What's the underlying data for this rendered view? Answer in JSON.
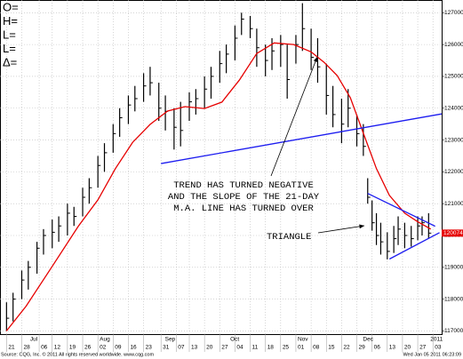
{
  "chart_data": {
    "type": "ohlc",
    "legend_labels": [
      "O=",
      "H=",
      "L=",
      "L=",
      "Δ="
    ],
    "bar_color": "#000000",
    "x": [
      0,
      3,
      7,
      10,
      14,
      17,
      21,
      24,
      28,
      31,
      35,
      38,
      42,
      45,
      49,
      52,
      56,
      59,
      63,
      66,
      70,
      73,
      77,
      80,
      84,
      87,
      91,
      94,
      98,
      101,
      105,
      108,
      112,
      115,
      119,
      122,
      126,
      129,
      133,
      136,
      140,
      143,
      147,
      150,
      154,
      157,
      161,
      164,
      166,
      168,
      170,
      172,
      175,
      178,
      180,
      183,
      186,
      189,
      191,
      194
    ],
    "high": [
      117900,
      118200,
      118900,
      119200,
      119800,
      120200,
      120500,
      120600,
      121000,
      120900,
      121500,
      121800,
      122500,
      122900,
      123500,
      124000,
      124400,
      124700,
      125100,
      125300,
      124800,
      124400,
      124000,
      124200,
      124500,
      124600,
      125000,
      125300,
      125800,
      126000,
      126600,
      127000,
      126900,
      126500,
      126000,
      126200,
      126300,
      126000,
      126300,
      127300,
      126500,
      126200,
      125400,
      124700,
      124300,
      124600,
      123800,
      123500,
      121800,
      121100,
      120700,
      120400,
      120100,
      120300,
      120600,
      120400,
      120300,
      120600,
      120600,
      120700
    ],
    "low": [
      117000,
      117300,
      118000,
      118300,
      118800,
      119400,
      119600,
      119800,
      120000,
      120300,
      120600,
      121000,
      121500,
      122000,
      122600,
      123100,
      123500,
      123900,
      124200,
      124400,
      123600,
      123300,
      122700,
      122800,
      123600,
      123800,
      124000,
      124300,
      124800,
      125100,
      125500,
      126300,
      126200,
      125300,
      125000,
      125200,
      125300,
      124300,
      125400,
      125800,
      125200,
      124800,
      123800,
      123400,
      122900,
      123400,
      122800,
      122500,
      121000,
      120150,
      119700,
      119400,
      119250,
      119450,
      119700,
      119600,
      119650,
      119850,
      120000,
      119900
    ],
    "close": [
      117400,
      118000,
      118600,
      119000,
      119600,
      120000,
      120100,
      120300,
      120700,
      120600,
      121200,
      121500,
      122200,
      122600,
      123200,
      123700,
      124100,
      124300,
      124700,
      124800,
      124000,
      123900,
      123400,
      123300,
      124200,
      124300,
      124600,
      125000,
      125400,
      125700,
      126200,
      126800,
      126500,
      125900,
      125500,
      125800,
      126000,
      124900,
      126000,
      126500,
      125600,
      125300,
      124400,
      123800,
      123500,
      124000,
      123200,
      122800,
      121200,
      120400,
      120000,
      119800,
      119500,
      119900,
      120200,
      120000,
      119900,
      120300,
      120400,
      120074
    ],
    "ma": {
      "color": "#e60000",
      "x": [
        0,
        9,
        21,
        33,
        42,
        50,
        58,
        66,
        74,
        82,
        91,
        99,
        107,
        115,
        123,
        132,
        140,
        146,
        152,
        158,
        164,
        170,
        176,
        183,
        189,
        195
      ],
      "values": [
        117000,
        117780,
        119030,
        120290,
        121120,
        122100,
        122930,
        123490,
        123910,
        124050,
        123990,
        124190,
        124880,
        125720,
        126050,
        126000,
        125770,
        125440,
        125020,
        124330,
        123210,
        122100,
        121260,
        120700,
        120430,
        120200
      ]
    },
    "trendlines": [
      {
        "color": "#1c1cf0",
        "x": [
          71,
          200
        ],
        "y": [
          122260,
          123820
        ]
      },
      {
        "color": "#1c1cf0",
        "x": [
          166,
          197
        ],
        "y": [
          121320,
          120290
        ]
      },
      {
        "color": "#1c1cf0",
        "x": [
          176,
          199
        ],
        "y": [
          119260,
          120090
        ]
      }
    ],
    "last_price": 120074,
    "last_price_color": "#e60000",
    "xlim": [
      -3,
      200
    ],
    "ylim": [
      116900,
      127400
    ],
    "yticks": [
      117000,
      118000,
      119000,
      120000,
      121000,
      122000,
      123000,
      124000,
      125000,
      126000,
      127000
    ],
    "xticks": [
      {
        "value": 0,
        "label": "21"
      },
      {
        "value": 7,
        "label": "28"
      },
      {
        "value": 15,
        "label": "06"
      },
      {
        "value": 21,
        "label": "12"
      },
      {
        "value": 28,
        "label": "19"
      },
      {
        "value": 35,
        "label": "26"
      },
      {
        "value": 42,
        "label": "02"
      },
      {
        "value": 49,
        "label": "09"
      },
      {
        "value": 56,
        "label": "16"
      },
      {
        "value": 63,
        "label": "23"
      },
      {
        "value": 71,
        "label": "31"
      },
      {
        "value": 78,
        "label": "07"
      },
      {
        "value": 84,
        "label": "13"
      },
      {
        "value": 91,
        "label": "20"
      },
      {
        "value": 98,
        "label": "27"
      },
      {
        "value": 105,
        "label": "04"
      },
      {
        "value": 112,
        "label": "11"
      },
      {
        "value": 119,
        "label": "18"
      },
      {
        "value": 126,
        "label": "25"
      },
      {
        "value": 133,
        "label": "01"
      },
      {
        "value": 140,
        "label": "08"
      },
      {
        "value": 147,
        "label": "15"
      },
      {
        "value": 154,
        "label": "22"
      },
      {
        "value": 161,
        "label": "29"
      },
      {
        "value": 168,
        "label": "06"
      },
      {
        "value": 175,
        "label": "13"
      },
      {
        "value": 182,
        "label": "20"
      },
      {
        "value": 189,
        "label": "27"
      },
      {
        "value": 196,
        "label": "03"
      }
    ],
    "month_ticks": [
      {
        "value": 10,
        "label": "Jul"
      },
      {
        "value": 42,
        "label": "Aug"
      },
      {
        "value": 72,
        "label": "Sep"
      },
      {
        "value": 102,
        "label": "Oct"
      },
      {
        "value": 133,
        "label": "Nov"
      },
      {
        "value": 163,
        "label": "Dec"
      },
      {
        "value": 194,
        "label": "2011"
      }
    ],
    "grid": true,
    "annotation_lines": [
      "TREND HAS TURNED NEGATIVE",
      "AND THE SLOPE OF THE 21-DAY",
      "M.A. LINE HAS TURNED OVER"
    ],
    "triangle_label": "TRIANGLE",
    "footer_source": "Source: CQG, Inc. © 2011 All rights reserved worldwide. www.cqg.com",
    "footer_time": "Wed Jan 05 2011 06:23:09"
  }
}
